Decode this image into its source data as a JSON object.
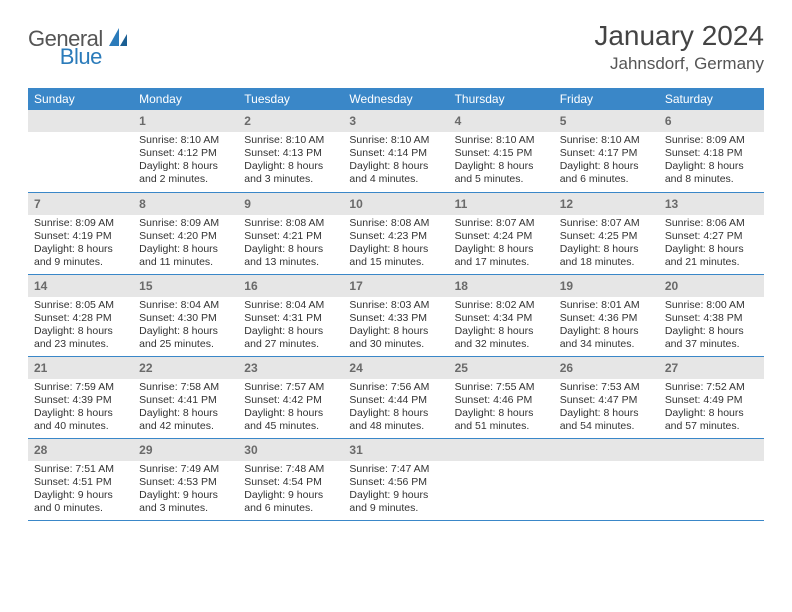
{
  "brand": {
    "word1": "General",
    "word2": "Blue"
  },
  "title": "January 2024",
  "location": "Jahnsdorf, Germany",
  "colors": {
    "header_bg": "#3a87c8",
    "header_text": "#ffffff",
    "daynum_bg": "#e6e6e6",
    "daynum_text": "#6a6a6a",
    "cell_border": "#3a87c8",
    "brand_gray": "#555555",
    "brand_blue": "#2b7bba"
  },
  "day_headers": [
    "Sunday",
    "Monday",
    "Tuesday",
    "Wednesday",
    "Thursday",
    "Friday",
    "Saturday"
  ],
  "weeks": [
    [
      {
        "day": "",
        "sunrise": "",
        "sunset": "",
        "daylight": ""
      },
      {
        "day": "1",
        "sunrise": "Sunrise: 8:10 AM",
        "sunset": "Sunset: 4:12 PM",
        "daylight": "Daylight: 8 hours and 2 minutes."
      },
      {
        "day": "2",
        "sunrise": "Sunrise: 8:10 AM",
        "sunset": "Sunset: 4:13 PM",
        "daylight": "Daylight: 8 hours and 3 minutes."
      },
      {
        "day": "3",
        "sunrise": "Sunrise: 8:10 AM",
        "sunset": "Sunset: 4:14 PM",
        "daylight": "Daylight: 8 hours and 4 minutes."
      },
      {
        "day": "4",
        "sunrise": "Sunrise: 8:10 AM",
        "sunset": "Sunset: 4:15 PM",
        "daylight": "Daylight: 8 hours and 5 minutes."
      },
      {
        "day": "5",
        "sunrise": "Sunrise: 8:10 AM",
        "sunset": "Sunset: 4:17 PM",
        "daylight": "Daylight: 8 hours and 6 minutes."
      },
      {
        "day": "6",
        "sunrise": "Sunrise: 8:09 AM",
        "sunset": "Sunset: 4:18 PM",
        "daylight": "Daylight: 8 hours and 8 minutes."
      }
    ],
    [
      {
        "day": "7",
        "sunrise": "Sunrise: 8:09 AM",
        "sunset": "Sunset: 4:19 PM",
        "daylight": "Daylight: 8 hours and 9 minutes."
      },
      {
        "day": "8",
        "sunrise": "Sunrise: 8:09 AM",
        "sunset": "Sunset: 4:20 PM",
        "daylight": "Daylight: 8 hours and 11 minutes."
      },
      {
        "day": "9",
        "sunrise": "Sunrise: 8:08 AM",
        "sunset": "Sunset: 4:21 PM",
        "daylight": "Daylight: 8 hours and 13 minutes."
      },
      {
        "day": "10",
        "sunrise": "Sunrise: 8:08 AM",
        "sunset": "Sunset: 4:23 PM",
        "daylight": "Daylight: 8 hours and 15 minutes."
      },
      {
        "day": "11",
        "sunrise": "Sunrise: 8:07 AM",
        "sunset": "Sunset: 4:24 PM",
        "daylight": "Daylight: 8 hours and 17 minutes."
      },
      {
        "day": "12",
        "sunrise": "Sunrise: 8:07 AM",
        "sunset": "Sunset: 4:25 PM",
        "daylight": "Daylight: 8 hours and 18 minutes."
      },
      {
        "day": "13",
        "sunrise": "Sunrise: 8:06 AM",
        "sunset": "Sunset: 4:27 PM",
        "daylight": "Daylight: 8 hours and 21 minutes."
      }
    ],
    [
      {
        "day": "14",
        "sunrise": "Sunrise: 8:05 AM",
        "sunset": "Sunset: 4:28 PM",
        "daylight": "Daylight: 8 hours and 23 minutes."
      },
      {
        "day": "15",
        "sunrise": "Sunrise: 8:04 AM",
        "sunset": "Sunset: 4:30 PM",
        "daylight": "Daylight: 8 hours and 25 minutes."
      },
      {
        "day": "16",
        "sunrise": "Sunrise: 8:04 AM",
        "sunset": "Sunset: 4:31 PM",
        "daylight": "Daylight: 8 hours and 27 minutes."
      },
      {
        "day": "17",
        "sunrise": "Sunrise: 8:03 AM",
        "sunset": "Sunset: 4:33 PM",
        "daylight": "Daylight: 8 hours and 30 minutes."
      },
      {
        "day": "18",
        "sunrise": "Sunrise: 8:02 AM",
        "sunset": "Sunset: 4:34 PM",
        "daylight": "Daylight: 8 hours and 32 minutes."
      },
      {
        "day": "19",
        "sunrise": "Sunrise: 8:01 AM",
        "sunset": "Sunset: 4:36 PM",
        "daylight": "Daylight: 8 hours and 34 minutes."
      },
      {
        "day": "20",
        "sunrise": "Sunrise: 8:00 AM",
        "sunset": "Sunset: 4:38 PM",
        "daylight": "Daylight: 8 hours and 37 minutes."
      }
    ],
    [
      {
        "day": "21",
        "sunrise": "Sunrise: 7:59 AM",
        "sunset": "Sunset: 4:39 PM",
        "daylight": "Daylight: 8 hours and 40 minutes."
      },
      {
        "day": "22",
        "sunrise": "Sunrise: 7:58 AM",
        "sunset": "Sunset: 4:41 PM",
        "daylight": "Daylight: 8 hours and 42 minutes."
      },
      {
        "day": "23",
        "sunrise": "Sunrise: 7:57 AM",
        "sunset": "Sunset: 4:42 PM",
        "daylight": "Daylight: 8 hours and 45 minutes."
      },
      {
        "day": "24",
        "sunrise": "Sunrise: 7:56 AM",
        "sunset": "Sunset: 4:44 PM",
        "daylight": "Daylight: 8 hours and 48 minutes."
      },
      {
        "day": "25",
        "sunrise": "Sunrise: 7:55 AM",
        "sunset": "Sunset: 4:46 PM",
        "daylight": "Daylight: 8 hours and 51 minutes."
      },
      {
        "day": "26",
        "sunrise": "Sunrise: 7:53 AM",
        "sunset": "Sunset: 4:47 PM",
        "daylight": "Daylight: 8 hours and 54 minutes."
      },
      {
        "day": "27",
        "sunrise": "Sunrise: 7:52 AM",
        "sunset": "Sunset: 4:49 PM",
        "daylight": "Daylight: 8 hours and 57 minutes."
      }
    ],
    [
      {
        "day": "28",
        "sunrise": "Sunrise: 7:51 AM",
        "sunset": "Sunset: 4:51 PM",
        "daylight": "Daylight: 9 hours and 0 minutes."
      },
      {
        "day": "29",
        "sunrise": "Sunrise: 7:49 AM",
        "sunset": "Sunset: 4:53 PM",
        "daylight": "Daylight: 9 hours and 3 minutes."
      },
      {
        "day": "30",
        "sunrise": "Sunrise: 7:48 AM",
        "sunset": "Sunset: 4:54 PM",
        "daylight": "Daylight: 9 hours and 6 minutes."
      },
      {
        "day": "31",
        "sunrise": "Sunrise: 7:47 AM",
        "sunset": "Sunset: 4:56 PM",
        "daylight": "Daylight: 9 hours and 9 minutes."
      },
      {
        "day": "",
        "sunrise": "",
        "sunset": "",
        "daylight": ""
      },
      {
        "day": "",
        "sunrise": "",
        "sunset": "",
        "daylight": ""
      },
      {
        "day": "",
        "sunrise": "",
        "sunset": "",
        "daylight": ""
      }
    ]
  ]
}
